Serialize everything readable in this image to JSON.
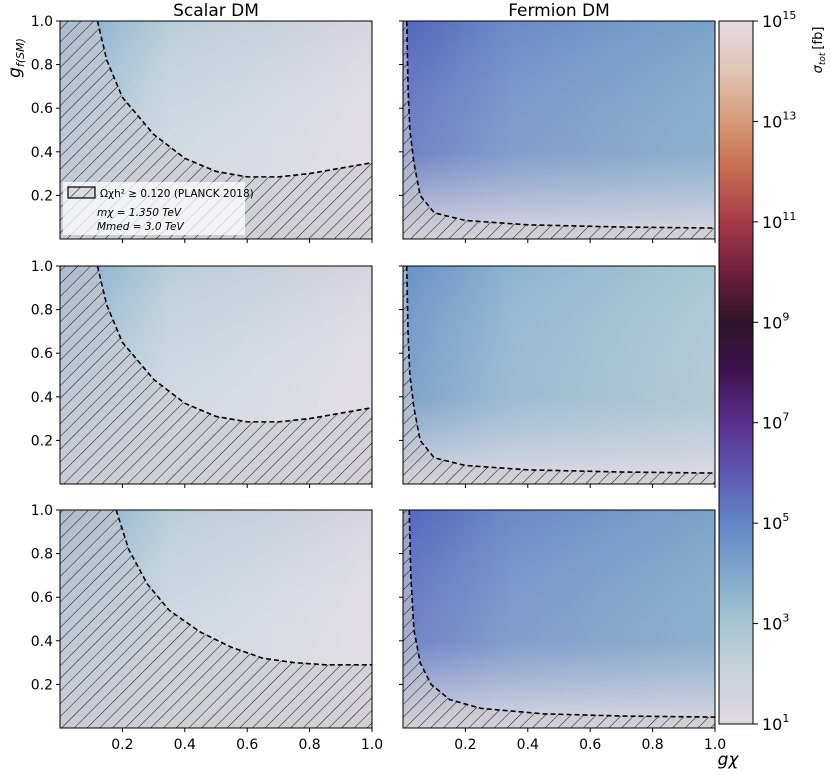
{
  "chart_data": {
    "type": "heatmap",
    "columns": [
      "Scalar DM",
      "Fermion DM"
    ],
    "xlabel": "gχ",
    "ylabel": "g",
    "ylabel_sub": "f(SM)",
    "x_ticks": [
      "0.2",
      "0.4",
      "0.6",
      "0.8",
      "1.0"
    ],
    "y_ticks": [
      "1.0",
      "0.8",
      "0.6",
      "0.4",
      "0.2"
    ],
    "xlim": [
      0,
      1
    ],
    "ylim": [
      0,
      1
    ],
    "colorbar": {
      "label": "σ",
      "label_sub": "tot",
      "label_unit": "[fb]",
      "scale": "log",
      "range_exponent": [
        1,
        15
      ],
      "tick_base": "10",
      "tick_exponents": [
        "15",
        "13",
        "11",
        "9",
        "7",
        "5",
        "3",
        "1"
      ],
      "colors": [
        "#e0d8e3",
        "#c8d3da",
        "#a7c6d1",
        "#7fa8cc",
        "#6186c7",
        "#5f58b2",
        "#5a2f8f",
        "#3f1250",
        "#2e1429",
        "#6f1f3d",
        "#a73a4a",
        "#c66a50",
        "#d79a78",
        "#e0c5b6",
        "#e6dbe3"
      ]
    },
    "legend": {
      "entry": "Ωχh² ≥ 0.120 (PLANCK 2018)",
      "mass_line": "mχ = 1.350 TeV",
      "mediator_line": "Mmed = 3.0 TeV"
    },
    "panels": [
      {
        "row": 1,
        "column": "Scalar DM",
        "boundary": [
          [
            0.12,
            1.0
          ],
          [
            0.15,
            0.82
          ],
          [
            0.2,
            0.65
          ],
          [
            0.3,
            0.48
          ],
          [
            0.4,
            0.37
          ],
          [
            0.5,
            0.31
          ],
          [
            0.6,
            0.285
          ],
          [
            0.7,
            0.285
          ],
          [
            0.8,
            0.3
          ],
          [
            0.9,
            0.325
          ],
          [
            1.0,
            0.35
          ]
        ]
      },
      {
        "row": 1,
        "column": "Fermion DM",
        "boundary": [
          [
            0.012,
            1.0
          ],
          [
            0.016,
            0.7
          ],
          [
            0.022,
            0.5
          ],
          [
            0.035,
            0.35
          ],
          [
            0.055,
            0.2
          ],
          [
            0.1,
            0.12
          ],
          [
            0.2,
            0.085
          ],
          [
            0.4,
            0.065
          ],
          [
            0.7,
            0.055
          ],
          [
            1.0,
            0.05
          ]
        ]
      },
      {
        "row": 2,
        "column": "Scalar DM",
        "boundary": [
          [
            0.12,
            1.0
          ],
          [
            0.15,
            0.82
          ],
          [
            0.2,
            0.65
          ],
          [
            0.3,
            0.48
          ],
          [
            0.4,
            0.37
          ],
          [
            0.5,
            0.31
          ],
          [
            0.6,
            0.285
          ],
          [
            0.7,
            0.285
          ],
          [
            0.8,
            0.3
          ],
          [
            0.9,
            0.325
          ],
          [
            1.0,
            0.35
          ]
        ]
      },
      {
        "row": 2,
        "column": "Fermion DM",
        "boundary": [
          [
            0.012,
            1.0
          ],
          [
            0.016,
            0.7
          ],
          [
            0.022,
            0.5
          ],
          [
            0.035,
            0.35
          ],
          [
            0.055,
            0.2
          ],
          [
            0.1,
            0.12
          ],
          [
            0.2,
            0.085
          ],
          [
            0.4,
            0.065
          ],
          [
            0.7,
            0.055
          ],
          [
            1.0,
            0.05
          ]
        ]
      },
      {
        "row": 3,
        "column": "Scalar DM",
        "boundary": [
          [
            0.18,
            1.0
          ],
          [
            0.22,
            0.82
          ],
          [
            0.28,
            0.66
          ],
          [
            0.35,
            0.54
          ],
          [
            0.45,
            0.44
          ],
          [
            0.55,
            0.37
          ],
          [
            0.65,
            0.32
          ],
          [
            0.75,
            0.3
          ],
          [
            0.85,
            0.29
          ],
          [
            1.0,
            0.29
          ]
        ]
      },
      {
        "row": 3,
        "column": "Fermion DM",
        "boundary": [
          [
            0.02,
            1.0
          ],
          [
            0.025,
            0.7
          ],
          [
            0.035,
            0.45
          ],
          [
            0.055,
            0.3
          ],
          [
            0.09,
            0.2
          ],
          [
            0.15,
            0.13
          ],
          [
            0.25,
            0.09
          ],
          [
            0.45,
            0.065
          ],
          [
            0.7,
            0.055
          ],
          [
            1.0,
            0.05
          ]
        ]
      }
    ]
  }
}
